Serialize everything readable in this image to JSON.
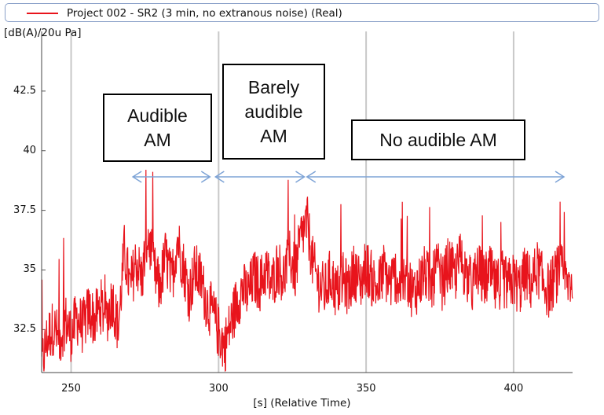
{
  "legend": {
    "label": "Project 002 - SR2 (3 min, no extranous noise) (Real)",
    "color": "#e8141c"
  },
  "chart_data": {
    "type": "line",
    "ylabel": "[dB(A)/20u Pa]",
    "xlabel": "[s] (Relative Time)",
    "xlim": [
      240,
      420
    ],
    "ylim": [
      30.7,
      45.0
    ],
    "x_ticks": [
      250,
      300,
      350,
      400
    ],
    "y_ticks": [
      32.5,
      35,
      37.5,
      40,
      42.5
    ],
    "x_tick_labels": [
      "250",
      "300",
      "350",
      "400"
    ],
    "y_tick_labels": [
      "32.5",
      "35",
      "37.5",
      "40",
      "42.5"
    ],
    "grid": "vertical",
    "legend_position": "top",
    "series": [
      {
        "name": "Project 002 - SR2 (3 min, no extranous noise) (Real)",
        "color": "#e8141c",
        "x": [
          240,
          242,
          244,
          246,
          248,
          250,
          252,
          254,
          256,
          258,
          260,
          262,
          264,
          266,
          268,
          270,
          272,
          274,
          276,
          278,
          280,
          282,
          284,
          286,
          288,
          290,
          292,
          294,
          296,
          298,
          300,
          302,
          304,
          306,
          308,
          310,
          312,
          314,
          316,
          318,
          320,
          322,
          324,
          326,
          328,
          330,
          332,
          334,
          336,
          338,
          340,
          342,
          344,
          346,
          348,
          350,
          352,
          354,
          356,
          358,
          360,
          362,
          364,
          366,
          368,
          370,
          372,
          374,
          376,
          378,
          380,
          382,
          384,
          386,
          388,
          390,
          392,
          394,
          396,
          398,
          400,
          402,
          404,
          406,
          408,
          410,
          412,
          414,
          416,
          418,
          420
        ],
        "values": [
          31.0,
          32.2,
          32.6,
          32.0,
          32.9,
          32.3,
          33.0,
          32.6,
          33.3,
          32.9,
          33.5,
          33.0,
          33.8,
          32.5,
          35.8,
          34.2,
          35.4,
          34.6,
          36.5,
          35.0,
          34.2,
          35.6,
          34.5,
          36.3,
          35.2,
          34.0,
          35.0,
          34.6,
          33.6,
          33.2,
          32.4,
          31.8,
          32.7,
          33.6,
          34.2,
          34.0,
          34.7,
          34.4,
          35.0,
          34.3,
          35.2,
          34.7,
          35.6,
          34.9,
          36.4,
          37.0,
          35.2,
          34.4,
          34.1,
          34.8,
          34.0,
          34.6,
          34.2,
          35.0,
          34.4,
          35.2,
          34.6,
          34.2,
          35.0,
          34.4,
          34.8,
          34.2,
          34.7,
          34.0,
          34.5,
          34.9,
          34.3,
          35.1,
          34.4,
          35.3,
          34.7,
          35.5,
          34.8,
          34.3,
          35.0,
          34.5,
          34.9,
          34.2,
          34.7,
          34.3,
          34.6,
          34.2,
          34.9,
          34.4,
          35.1,
          34.5,
          34.1,
          34.7,
          35.0,
          34.4,
          34.6
        ]
      }
    ]
  },
  "annotations": [
    {
      "text": "Audible\nAM"
    },
    {
      "text": "Barely\naudible\nAM"
    },
    {
      "text": "No audible AM"
    }
  ]
}
